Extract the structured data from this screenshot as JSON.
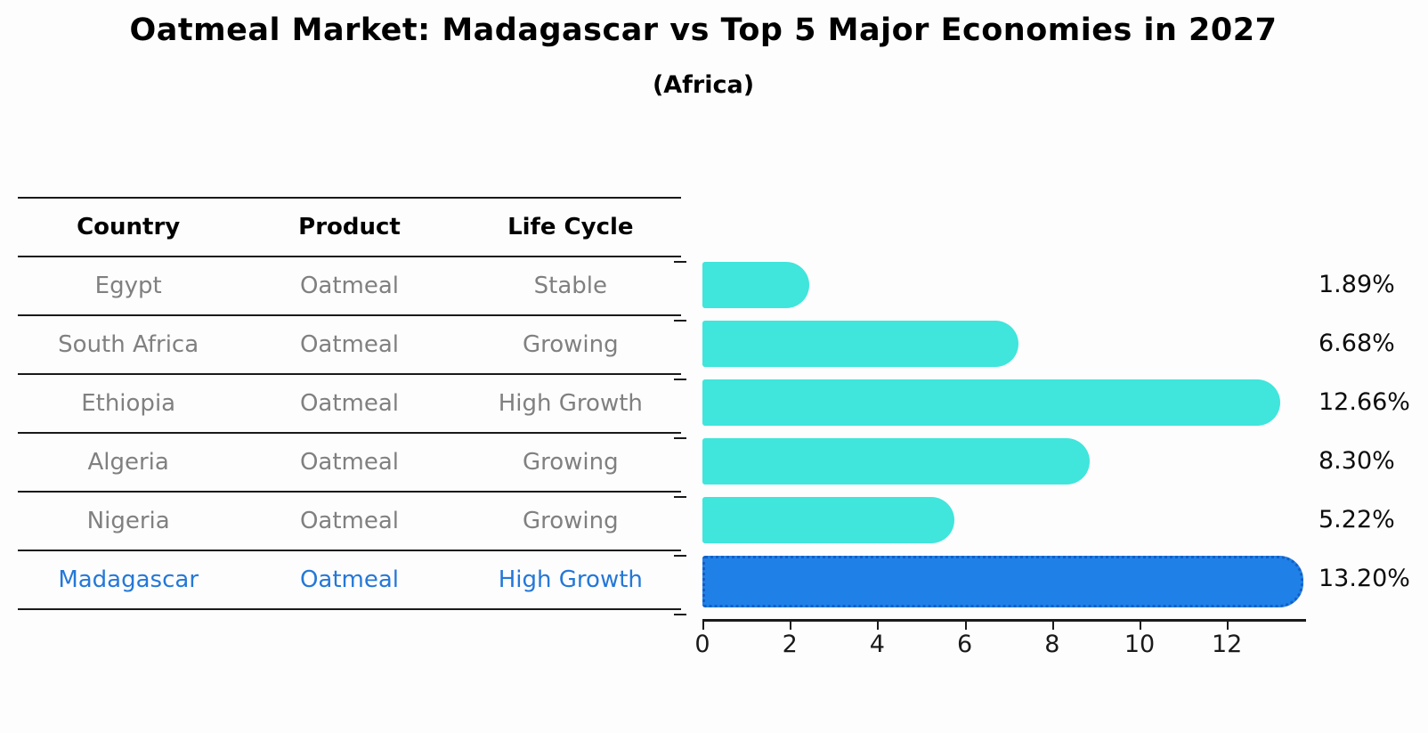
{
  "title": "Oatmeal Market: Madagascar vs Top 5 Major Economies in 2027",
  "subtitle": "(Africa)",
  "table": {
    "headers": [
      "Country",
      "Product",
      "Life Cycle"
    ],
    "rows": [
      {
        "country": "Egypt",
        "product": "Oatmeal",
        "life_cycle": "Stable",
        "highlight": false
      },
      {
        "country": "South Africa",
        "product": "Oatmeal",
        "life_cycle": "Growing",
        "highlight": false
      },
      {
        "country": "Ethiopia",
        "product": "Oatmeal",
        "life_cycle": "High Growth",
        "highlight": false
      },
      {
        "country": "Algeria",
        "product": "Oatmeal",
        "life_cycle": "Growing",
        "highlight": false
      },
      {
        "country": "Nigeria",
        "product": "Oatmeal",
        "life_cycle": "Growing",
        "highlight": false
      },
      {
        "country": "Madagascar",
        "product": "Oatmeal",
        "life_cycle": "High Growth",
        "highlight": true
      }
    ]
  },
  "chart_data": {
    "type": "bar",
    "orientation": "horizontal",
    "title": "Oatmeal Market: Madagascar vs Top 5 Major Economies in 2027",
    "subtitle": "(Africa)",
    "categories": [
      "Egypt",
      "South Africa",
      "Ethiopia",
      "Algeria",
      "Nigeria",
      "Madagascar"
    ],
    "values": [
      1.89,
      6.68,
      12.66,
      8.3,
      5.22,
      13.2
    ],
    "value_labels": [
      "1.89%",
      "6.68%",
      "12.66%",
      "8.30%",
      "5.22%",
      "13.20%"
    ],
    "x_ticks": [
      0,
      2,
      4,
      6,
      8,
      10,
      12
    ],
    "xlim": [
      0,
      13.8
    ],
    "grid": false,
    "legend": "none",
    "bar_color": "#40e5dc",
    "highlight_color": "#1f80e8",
    "highlight_index": 5,
    "highlight_text_color": "#2478d8"
  }
}
